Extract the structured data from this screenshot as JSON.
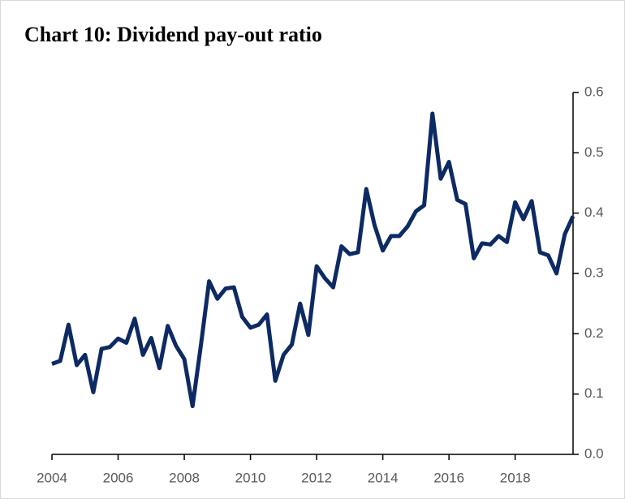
{
  "chart_data": {
    "type": "line",
    "title": "Chart 10:  Dividend pay-out ratio",
    "x": [
      2004,
      2004.25,
      2004.5,
      2004.75,
      2005,
      2005.25,
      2005.5,
      2005.75,
      2006,
      2006.25,
      2006.5,
      2006.75,
      2007,
      2007.25,
      2007.5,
      2007.75,
      2008,
      2008.25,
      2008.5,
      2008.75,
      2009,
      2009.25,
      2009.5,
      2009.75,
      2010,
      2010.25,
      2010.5,
      2010.75,
      2011,
      2011.25,
      2011.5,
      2011.75,
      2012,
      2012.25,
      2012.5,
      2012.75,
      2013,
      2013.25,
      2013.5,
      2013.75,
      2014,
      2014.25,
      2014.5,
      2014.75,
      2015,
      2015.25,
      2015.5,
      2015.75,
      2016,
      2016.25,
      2016.5,
      2016.75,
      2017,
      2017.25,
      2017.5,
      2017.75,
      2018,
      2018.25,
      2018.5,
      2018.75,
      2019,
      2019.25,
      2019.5,
      2019.75
    ],
    "series": [
      {
        "name": "Dividend pay-out ratio",
        "color": "#0d2a63",
        "values": [
          0.15,
          0.155,
          0.215,
          0.148,
          0.165,
          0.103,
          0.175,
          0.178,
          0.192,
          0.185,
          0.225,
          0.165,
          0.193,
          0.143,
          0.213,
          0.18,
          0.158,
          0.08,
          0.18,
          0.287,
          0.258,
          0.275,
          0.277,
          0.228,
          0.21,
          0.215,
          0.232,
          0.122,
          0.165,
          0.182,
          0.25,
          0.198,
          0.312,
          0.292,
          0.277,
          0.345,
          0.332,
          0.335,
          0.44,
          0.38,
          0.338,
          0.362,
          0.362,
          0.378,
          0.403,
          0.413,
          0.565,
          0.457,
          0.485,
          0.422,
          0.415,
          0.325,
          0.35,
          0.348,
          0.362,
          0.352,
          0.418,
          0.39,
          0.42,
          0.335,
          0.33,
          0.3,
          0.365,
          0.395
        ]
      }
    ],
    "xlim": [
      2004,
      2019.75
    ],
    "xticks": [
      2004,
      2006,
      2008,
      2010,
      2012,
      2014,
      2016,
      2018
    ],
    "ylim": [
      0,
      0.6
    ],
    "yticks": [
      {
        "value": 0,
        "label": "0.0"
      },
      0.1,
      0.2,
      0.3,
      0.4,
      0.5,
      0.6
    ]
  }
}
